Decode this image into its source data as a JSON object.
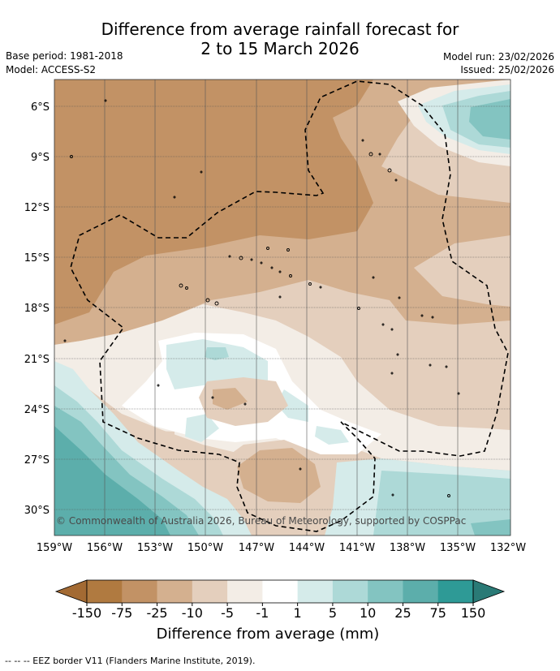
{
  "title_line1": "Difference from average rainfall forecast for",
  "title_line2": "2 to 15 March 2026",
  "base_period": "Base period: 1981-2018",
  "model": "Model: ACCESS-S2",
  "model_run": "Model run: 23/02/2026",
  "issued": "Issued: 25/02/2026",
  "copyright": "© Commonwealth of Australia 2026, Bureau of Meteorology, supported by COSPPac",
  "lat_labels": [
    "6°S",
    "9°S",
    "12°S",
    "15°S",
    "18°S",
    "21°S",
    "24°S",
    "27°S",
    "30°S"
  ],
  "lon_labels": [
    "159°W",
    "156°W",
    "153°W",
    "150°W",
    "147°W",
    "144°W",
    "141°W",
    "138°W",
    "135°W",
    "132°W"
  ],
  "colorbar": {
    "ticks": [
      "-150",
      "-75",
      "-25",
      "-10",
      "-5",
      "-1",
      "1",
      "5",
      "10",
      "25",
      "75",
      "150"
    ],
    "colors": [
      "#b07a40",
      "#c29265",
      "#d4b08f",
      "#e4cfbd",
      "#f3ede6",
      "#ffffff",
      "#d5ebea",
      "#add9d7",
      "#83c4c1",
      "#5caeab",
      "#2e9a96"
    ],
    "under_color": "#a36a33",
    "over_color": "#2a7a76",
    "label": "Difference from average (mm)"
  },
  "footer": "-- -- -- EEZ border V11 (Flanders Marine Institute, 2019)."
}
